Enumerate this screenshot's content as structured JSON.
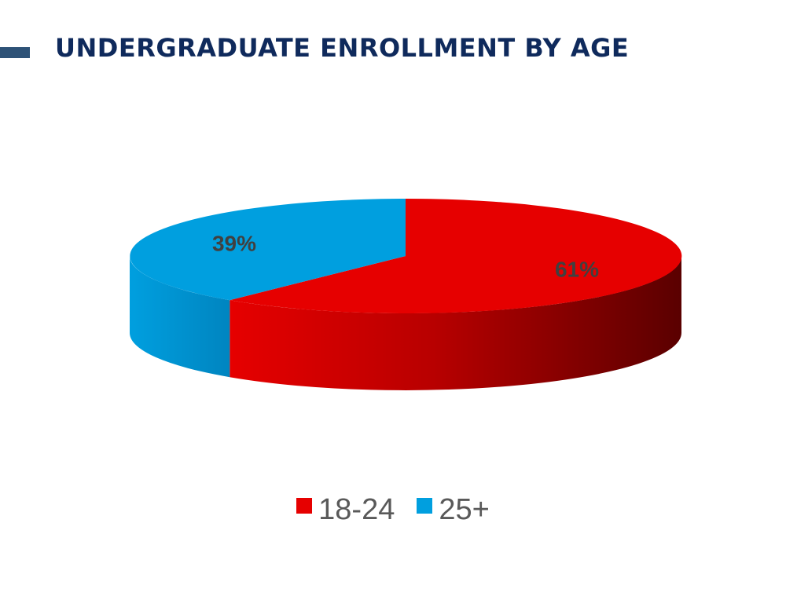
{
  "header": {
    "title": "UNDERGRADUATE ENROLLMENT BY AGE",
    "title_color": "#0f2a5c",
    "bar_color": "#2e5277"
  },
  "chart_data": {
    "type": "pie",
    "title": "UNDERGRADUATE ENROLLMENT BY AGE",
    "categories": [
      "18-24",
      "25+"
    ],
    "values": [
      61,
      39
    ],
    "labels": [
      "61%",
      "39%"
    ],
    "colors": [
      "#e60000",
      "#009fdf"
    ],
    "three_d": true,
    "legend_position": "bottom"
  }
}
